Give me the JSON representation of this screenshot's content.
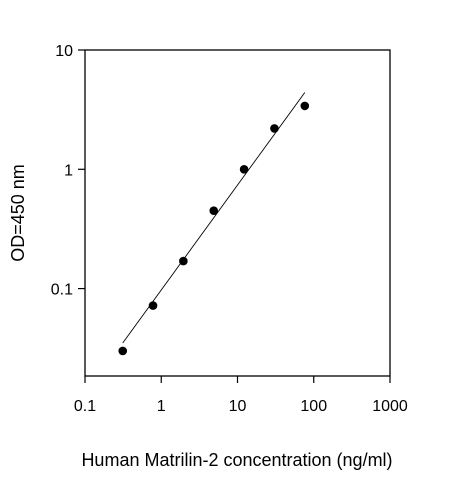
{
  "chart_data": {
    "type": "scatter",
    "title": "",
    "xlabel": "Human Matrilin-2 concentration (ng/ml)",
    "ylabel": "OD=450 nm",
    "x_scale": "log",
    "y_scale": "log",
    "xlim": [
      0.1,
      1000
    ],
    "ylim": [
      0.01,
      10
    ],
    "x_ticks": [
      "0.1",
      "1",
      "10",
      "100",
      "1000"
    ],
    "y_ticks": [
      "0.1",
      "1",
      "10"
    ],
    "grid": false,
    "legend": "none",
    "series": [
      {
        "type": "scatter",
        "x": [
          0.3125,
          0.78,
          1.95,
          4.88,
          12.2,
          30.5,
          76.3
        ],
        "y": [
          0.03,
          0.072,
          0.17,
          0.45,
          1.0,
          2.2,
          3.4
        ]
      }
    ],
    "fit_line": {
      "x": [
        0.3125,
        76.3
      ],
      "y": [
        0.035,
        4.4
      ]
    },
    "colors": {
      "marker": "#000000",
      "line": "#000000",
      "axis": "#000000"
    }
  }
}
